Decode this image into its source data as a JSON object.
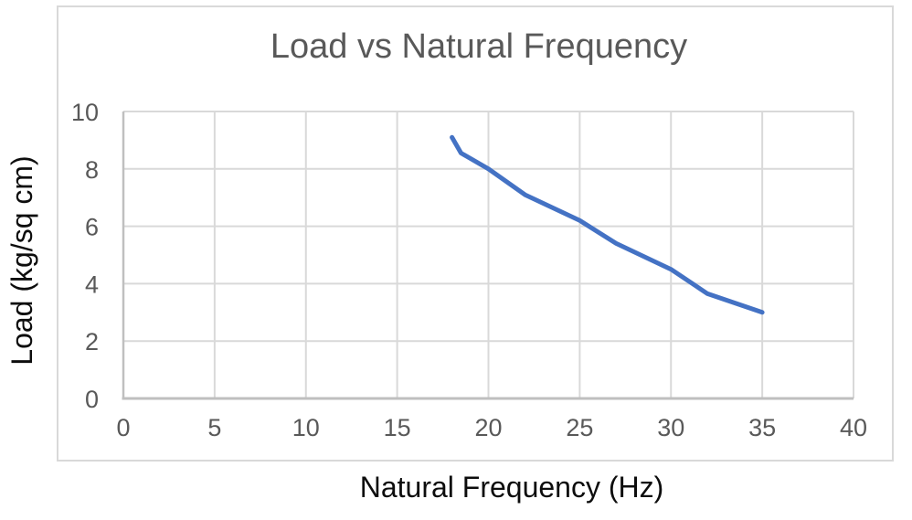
{
  "chart": {
    "title": "Load vs Natural Frequency",
    "x_title": "Natural Frequency (Hz)",
    "y_title": "Load (kg/sq cm)"
  },
  "chart_data": {
    "type": "line",
    "title": "Load vs Natural Frequency",
    "xlabel": "Natural Frequency (Hz)",
    "ylabel": "Load (kg/sq cm)",
    "xlim": [
      0,
      40
    ],
    "ylim": [
      0,
      10
    ],
    "x_ticks": [
      0,
      5,
      10,
      15,
      20,
      25,
      30,
      35,
      40
    ],
    "y_ticks": [
      0,
      2,
      4,
      6,
      8,
      10
    ],
    "grid": true,
    "legend": false,
    "series": [
      {
        "name": "Load",
        "color": "#4472C4",
        "points": [
          [
            18,
            9.1
          ],
          [
            18.5,
            8.55
          ],
          [
            20,
            8.0
          ],
          [
            22,
            7.1
          ],
          [
            25,
            6.2
          ],
          [
            27,
            5.4
          ],
          [
            30,
            4.5
          ],
          [
            32,
            3.65
          ],
          [
            35,
            3.0
          ]
        ]
      }
    ],
    "colors": {
      "gridline": "#d9d9d9",
      "axis_line": "#bfbfbf",
      "tick_text": "#595959",
      "frame_border": "#d9d9d9",
      "title_text": "#595959",
      "axis_title_text": "#0d0d0d"
    }
  }
}
